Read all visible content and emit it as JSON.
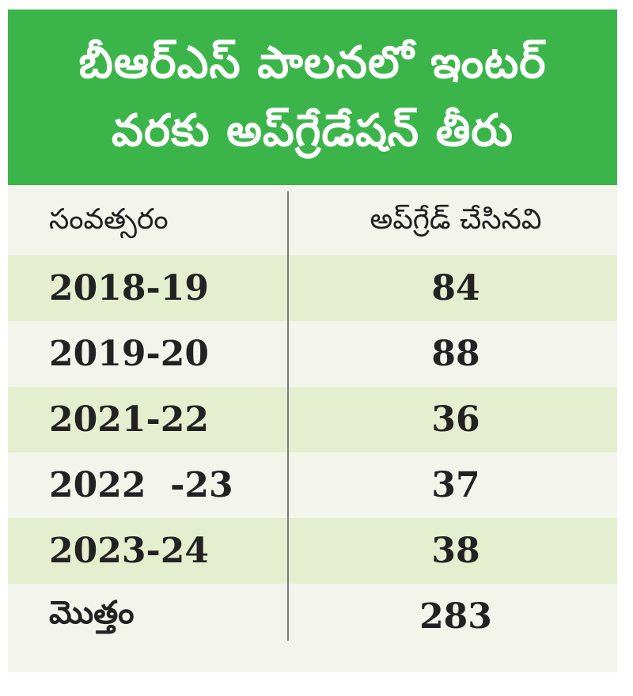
{
  "title": {
    "line1": "బీఆర్‌ఎస్ పాలనలో ఇంటర్",
    "line2": "వరకు అప్‌గ్రేడేషన్ తీరు"
  },
  "colors": {
    "header_bg": "#3bb54a",
    "header_text": "#ffffff",
    "row_shaded": "#e6eed0",
    "row_plain": "#f3f5ec"
  },
  "chart_data": {
    "type": "table",
    "title": "బీఆర్‌ఎస్ పాలనలో ఇంటర్ వరకు అప్‌గ్రేడేషన్ తీరు",
    "columns": [
      "సంవత్సరం",
      "అప్‌గ్రేడ్   చేసినవి"
    ],
    "rows": [
      {
        "year": "2018-19",
        "count": "84"
      },
      {
        "year": "2019-20",
        "count": "88"
      },
      {
        "year": "2021-22",
        "count": "36"
      },
      {
        "year": "2022  -23",
        "count": "37"
      },
      {
        "year": "2023-24",
        "count": "38"
      }
    ],
    "total": {
      "label": "మొత్తం",
      "count": "283"
    }
  }
}
